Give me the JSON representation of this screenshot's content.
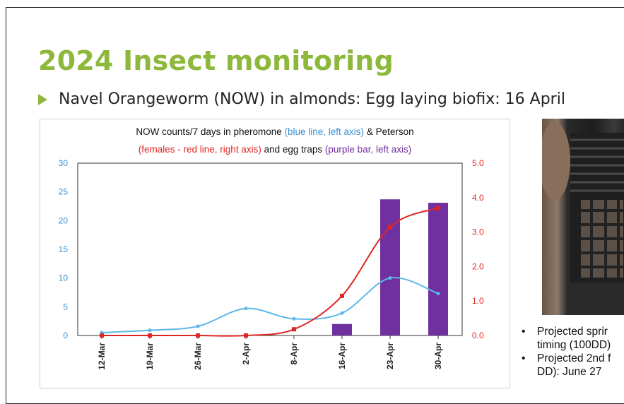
{
  "slide": {
    "title": "2024 Insect monitoring",
    "bullet": "Navel Orangeworm (NOW) in almonds: Egg laying biofix: 16 April",
    "right_bullets": [
      {
        "line1": "Projected sprir",
        "line2": "timing (100DD)"
      },
      {
        "line1": "Projected 2nd f",
        "line2": "DD): June 27"
      }
    ]
  },
  "chart_data": {
    "type": "line",
    "title_line1_a": "NOW counts/7 days in pheromone ",
    "title_line1_b": "(blue line, left axis)",
    "title_line1_c": " & Peterson",
    "title_line2_a": "(females - red line, right axis)",
    "title_line2_b": " and egg traps ",
    "title_line2_c": "(purple bar, left axis)",
    "categories": [
      "12-Mar",
      "19-Mar",
      "26-Mar",
      "2-Apr",
      "8-Apr",
      "16-Apr",
      "23-Apr",
      "30-Apr"
    ],
    "left_axis": {
      "min": 0,
      "max": 30,
      "ticks": [
        "0",
        "5",
        "10",
        "15",
        "20",
        "25",
        "30"
      ],
      "color": "#3a8fd0"
    },
    "right_axis": {
      "min": 0,
      "max": 5,
      "ticks": [
        "0.0",
        "1.0",
        "2.0",
        "3.0",
        "4.0",
        "5.0"
      ],
      "color": "#e02525"
    },
    "series": [
      {
        "axis": "left",
        "type": "line",
        "color": "#5bb8e8",
        "values": [
          0.5,
          0.9,
          1.6,
          4.7,
          2.9,
          3.9,
          10.0,
          7.3
        ]
      },
      {
        "axis": "right",
        "type": "line",
        "color": "#e02525",
        "values": [
          0,
          0,
          0,
          0,
          0.18,
          1.15,
          3.15,
          3.7
        ]
      },
      {
        "axis": "left",
        "type": "bar",
        "color": "#7030a0",
        "values": [
          0,
          0,
          0,
          0,
          0,
          2.0,
          23.7,
          23.1
        ]
      }
    ],
    "grid": false
  }
}
